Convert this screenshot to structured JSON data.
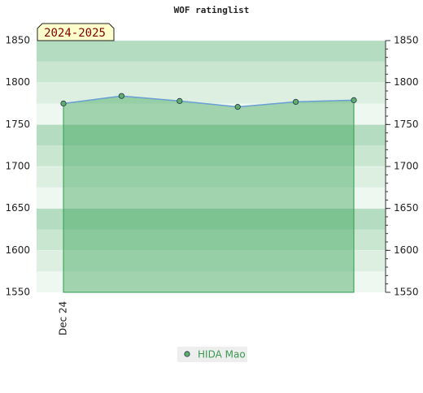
{
  "chart_data": {
    "type": "line",
    "title": "WOF ratinglist",
    "annotation": "2024-2025",
    "categories": [
      "Dec 24",
      null,
      null,
      null,
      null,
      null
    ],
    "series": [
      {
        "name": "HIDA Mao",
        "color": "#6a9fd4",
        "marker_color": "#5fae6e",
        "values": [
          1775,
          1784,
          1778,
          1771,
          1777,
          1779
        ]
      }
    ],
    "ylim": [
      1550,
      1850
    ],
    "yticks": [
      1550,
      1600,
      1650,
      1700,
      1750,
      1800,
      1850
    ],
    "grid": true
  }
}
